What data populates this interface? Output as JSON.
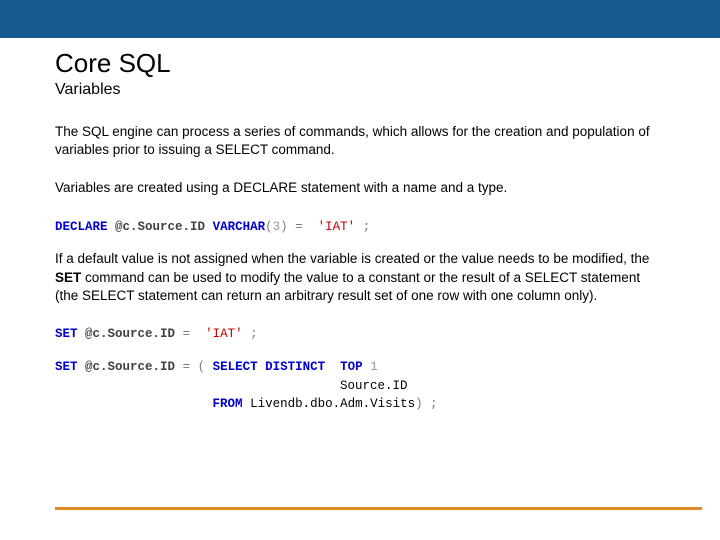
{
  "colors": {
    "header_bg": "#185a8f",
    "rule": "#e08d25",
    "keyword": "#0000cc",
    "string": "#c00000",
    "number": "#999999",
    "punct": "#7a7a7a",
    "text": "#000000"
  },
  "title": "Core SQL",
  "subtitle": "Variables",
  "p1": "The SQL engine can process a series of commands, which allows for the creation and population of variables prior to issuing a SELECT command.",
  "p2_pre": "Variables are created using a ",
  "p2_kw": "DECLARE",
  "p2_post": " statement with a name and a type.",
  "code1": {
    "declare": "DECLARE",
    "var": "@c.Source.ID",
    "type": "VARCHAR",
    "len": "3",
    "val": "'IAT'"
  },
  "p3_pre": "If a default value is not assigned when the variable is created or the value needs to be modified, the ",
  "p3_kw": "SET",
  "p3_post": " command can be used to modify the value to a constant or the result of a SELECT statement (the SELECT statement can return an arbitrary result set of one row with one column only).",
  "code2": {
    "set": "SET",
    "var": "@c.Source.ID",
    "val": "'IAT'"
  },
  "code3": {
    "set": "SET",
    "var": "@c.Source.ID",
    "select": "SELECT DISTINCT",
    "top": "TOP",
    "topn": "1",
    "col": "Source.ID",
    "from": "FROM",
    "table": "Livendb.dbo.Adm.Visits"
  }
}
